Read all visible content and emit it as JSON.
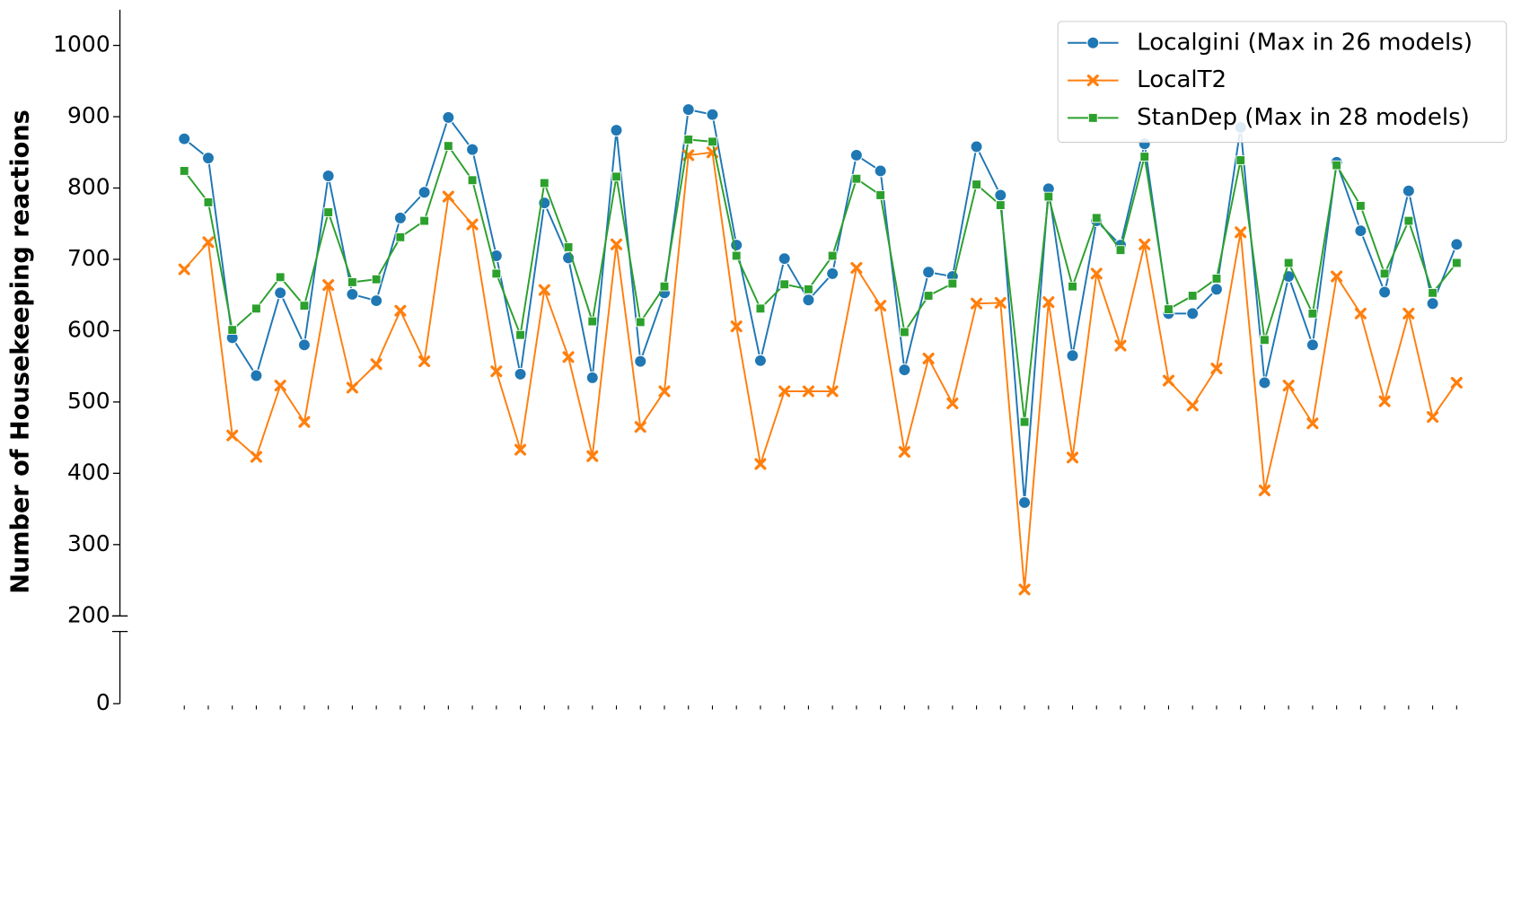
{
  "chart_data": {
    "type": "line",
    "ylabel": "Number of Housekeeping reactions",
    "categories": [
      null,
      null,
      null,
      null,
      null,
      null,
      null,
      null,
      null,
      null,
      null,
      null,
      null,
      null,
      null,
      null,
      null,
      null,
      null,
      null,
      null,
      null,
      null,
      null,
      null,
      null,
      null,
      null,
      null,
      null,
      null,
      null,
      null,
      null,
      null,
      null,
      null,
      null,
      null,
      null,
      null,
      null,
      null,
      null,
      null,
      null,
      null,
      null,
      null,
      null,
      null,
      null,
      null,
      null
    ],
    "ylim": [
      200,
      1050
    ],
    "yticks": [
      200,
      300,
      400,
      500,
      600,
      700,
      800,
      900,
      1000
    ],
    "ylim_lower": [
      0,
      100
    ],
    "yticks_lower": [
      0
    ],
    "legend": "upper right",
    "series": [
      {
        "name": "Localgini (Max in 26 models)",
        "color": "#1f77b4",
        "marker": "circle",
        "values": [
          869,
          842,
          590,
          537,
          653,
          580,
          817,
          651,
          642,
          758,
          794,
          899,
          854,
          705,
          539,
          779,
          702,
          534,
          881,
          557,
          653,
          910,
          903,
          720,
          558,
          701,
          643,
          680,
          846,
          824,
          545,
          682,
          676,
          858,
          790,
          359,
          799,
          565,
          754,
          720,
          862,
          624,
          624,
          658,
          885,
          527,
          676,
          580,
          836,
          740,
          654,
          796,
          638,
          721
        ]
      },
      {
        "name": "LocalT2",
        "color": "#ff7f0e",
        "marker": "x",
        "values": [
          686,
          724,
          453,
          423,
          523,
          472,
          664,
          520,
          553,
          628,
          557,
          788,
          749,
          543,
          433,
          657,
          563,
          424,
          721,
          465,
          515,
          846,
          850,
          606,
          413,
          515,
          515,
          515,
          688,
          635,
          430,
          561,
          498,
          638,
          639,
          237,
          640,
          422,
          680,
          579,
          721,
          530,
          495,
          547,
          738,
          376,
          523,
          470,
          676,
          624,
          501,
          624,
          479,
          527
        ]
      },
      {
        "name": "StanDep (Max in 28 models)",
        "color": "#2ca02c",
        "marker": "square",
        "values": [
          824,
          780,
          601,
          631,
          675,
          635,
          766,
          668,
          672,
          731,
          754,
          859,
          811,
          680,
          594,
          807,
          717,
          613,
          816,
          612,
          662,
          868,
          865,
          705,
          631,
          665,
          658,
          705,
          813,
          790,
          598,
          649,
          666,
          805,
          776,
          472,
          788,
          662,
          758,
          713,
          844,
          630,
          649,
          673,
          839,
          587,
          695,
          624,
          832,
          775,
          680,
          754,
          653,
          695
        ]
      }
    ]
  }
}
